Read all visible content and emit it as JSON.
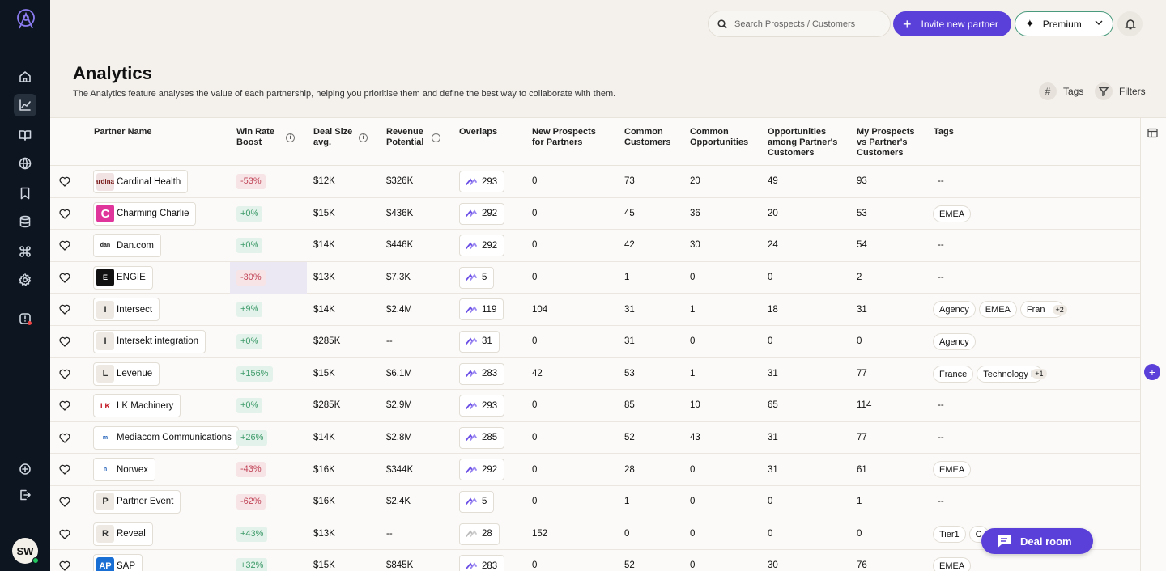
{
  "topbar": {
    "search_placeholder": "Search Prospects / Customers",
    "invite_label": "Invite new partner",
    "plan_label": "Premium"
  },
  "page": {
    "title": "Analytics",
    "subtitle": "The Analytics feature analyses the value of each partnership, helping you prioritise them and define the best way to collaborate with them.",
    "tags_label": "Tags",
    "filters_label": "Filters"
  },
  "user": {
    "initials": "SW"
  },
  "columns": {
    "partner": "Partner Name",
    "win_rate": [
      "Win Rate",
      "Boost"
    ],
    "deal_size": [
      "Deal Size",
      "avg."
    ],
    "revenue": [
      "Revenue",
      "Potential"
    ],
    "overlaps": "Overlaps",
    "new_prospects": [
      "New Prospects",
      "for Partners"
    ],
    "common_customers": [
      "Common",
      "Customers"
    ],
    "common_opps": [
      "Common",
      "Opportunities"
    ],
    "opps_among": [
      "Opportunities",
      "among Partner's",
      "Customers"
    ],
    "my_prospects": [
      "My Prospects",
      "vs Partner's",
      "Customers"
    ],
    "tags": "Tags"
  },
  "rows": [
    {
      "name": "Cardinal Health",
      "logo": "ardinal",
      "boost": "-53%",
      "deal": "$12K",
      "revenue": "$326K",
      "overlaps": "293",
      "new_prospects": "0",
      "common_customers": "73",
      "common_opps": "20",
      "opps_among": "49",
      "my_prospects": "93",
      "tags": [
        "--"
      ]
    },
    {
      "name": "Charming Charlie",
      "logo": "C",
      "boost": "+0%",
      "deal": "$15K",
      "revenue": "$436K",
      "overlaps": "292",
      "new_prospects": "0",
      "common_customers": "45",
      "common_opps": "36",
      "opps_among": "20",
      "my_prospects": "53",
      "tags": [
        "EMEA"
      ]
    },
    {
      "name": "Dan.com",
      "logo": "dan",
      "boost": "+0%",
      "deal": "$14K",
      "revenue": "$446K",
      "overlaps": "292",
      "new_prospects": "0",
      "common_customers": "42",
      "common_opps": "30",
      "opps_among": "24",
      "my_prospects": "54",
      "tags": [
        "--"
      ]
    },
    {
      "name": "ENGIE",
      "logo": "E",
      "boost": "-30%",
      "deal": "$13K",
      "revenue": "$7.3K",
      "overlaps": "5",
      "new_prospects": "0",
      "common_customers": "1",
      "common_opps": "0",
      "opps_among": "0",
      "my_prospects": "2",
      "tags": [
        "--"
      ]
    },
    {
      "name": "Intersect",
      "logo": "I",
      "boost": "+9%",
      "deal": "$14K",
      "revenue": "$2.4M",
      "overlaps": "119",
      "new_prospects": "104",
      "common_customers": "31",
      "common_opps": "1",
      "opps_among": "18",
      "my_prospects": "31",
      "tags": [
        "Agency",
        "EMEA",
        "Fran"
      ],
      "more": "+2"
    },
    {
      "name": "Intersekt integration",
      "logo": "I",
      "boost": "+0%",
      "deal": "$285K",
      "revenue": "--",
      "overlaps": "31",
      "new_prospects": "0",
      "common_customers": "31",
      "common_opps": "0",
      "opps_among": "0",
      "my_prospects": "0",
      "tags": [
        "Agency"
      ]
    },
    {
      "name": "Levenue",
      "logo": "L",
      "boost": "+156%",
      "deal": "$15K",
      "revenue": "$6.1M",
      "overlaps": "283",
      "new_prospects": "42",
      "common_customers": "53",
      "common_opps": "1",
      "opps_among": "31",
      "my_prospects": "77",
      "tags": [
        "France",
        "Technology Pa"
      ],
      "more": "+1"
    },
    {
      "name": "LK Machinery",
      "logo": "LK",
      "boost": "+0%",
      "deal": "$285K",
      "revenue": "$2.9M",
      "overlaps": "293",
      "new_prospects": "0",
      "common_customers": "85",
      "common_opps": "10",
      "opps_among": "65",
      "my_prospects": "114",
      "tags": [
        "--"
      ]
    },
    {
      "name": "Mediacom Communications",
      "logo": "m",
      "boost": "+26%",
      "deal": "$14K",
      "revenue": "$2.8M",
      "overlaps": "285",
      "new_prospects": "0",
      "common_customers": "52",
      "common_opps": "43",
      "opps_among": "31",
      "my_prospects": "77",
      "tags": [
        "--"
      ]
    },
    {
      "name": "Norwex",
      "logo": "n",
      "boost": "-43%",
      "deal": "$16K",
      "revenue": "$344K",
      "overlaps": "292",
      "new_prospects": "0",
      "common_customers": "28",
      "common_opps": "0",
      "opps_among": "31",
      "my_prospects": "61",
      "tags": [
        "EMEA"
      ]
    },
    {
      "name": "Partner Event",
      "logo": "P",
      "boost": "-62%",
      "deal": "$16K",
      "revenue": "$2.4K",
      "overlaps": "5",
      "new_prospects": "0",
      "common_customers": "1",
      "common_opps": "0",
      "opps_among": "0",
      "my_prospects": "1",
      "tags": [
        "--"
      ]
    },
    {
      "name": "Reveal",
      "logo": "R",
      "boost": "+43%",
      "deal": "$13K",
      "revenue": "--",
      "overlaps": "28",
      "new_prospects": "152",
      "common_customers": "0",
      "common_opps": "0",
      "opps_among": "0",
      "my_prospects": "0",
      "tags": [
        "Tier1",
        "C"
      ]
    },
    {
      "name": "SAP",
      "logo": "AP",
      "boost": "+32%",
      "deal": "$15K",
      "revenue": "$845K",
      "overlaps": "283",
      "new_prospects": "0",
      "common_customers": "52",
      "common_opps": "0",
      "opps_among": "30",
      "my_prospects": "76",
      "tags": [
        "EMEA"
      ]
    }
  ],
  "deal_room_label": "Deal room",
  "colors": {
    "accent": "#5b3fd9",
    "sidebar": "#0d1520",
    "positive": "#3e9b6b",
    "negative": "#c04457"
  }
}
